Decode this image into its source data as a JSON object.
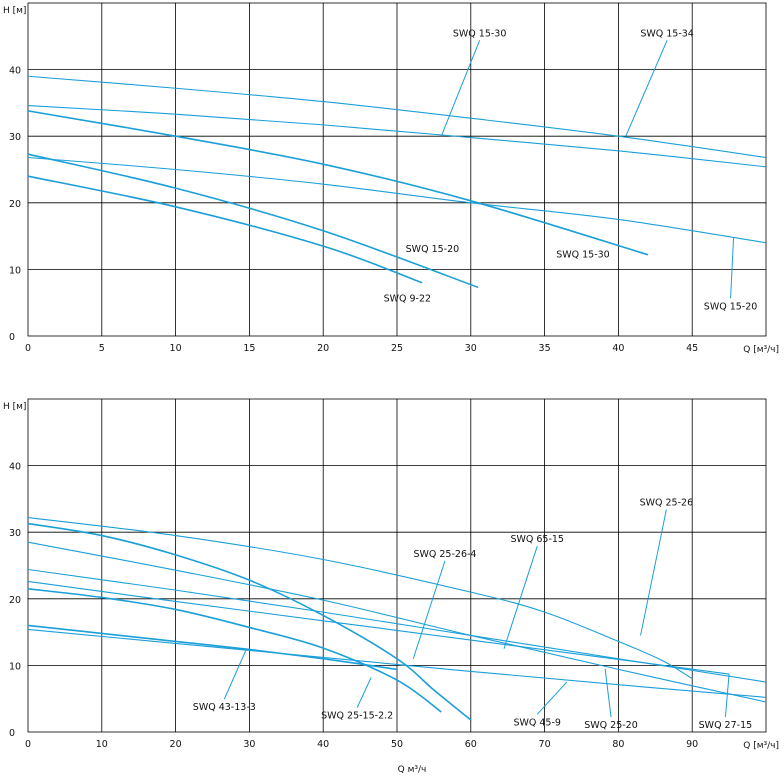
{
  "chart_data": [
    {
      "type": "line",
      "xlabel": "Q [м³/ч]",
      "ylabel": "H [м]",
      "xlim": [
        0,
        50
      ],
      "ylim": [
        0,
        50
      ],
      "x_ticks": [
        0,
        5,
        10,
        15,
        20,
        25,
        30,
        35,
        40,
        45
      ],
      "y_ticks": [
        0,
        10,
        20,
        30,
        40
      ],
      "grid": true,
      "series": [
        {
          "name": "SWQ 15-34",
          "width": 1.1,
          "points": [
            [
              0,
              39
            ],
            [
              10,
              37.2
            ],
            [
              20,
              35.2
            ],
            [
              30,
              32.7
            ],
            [
              40,
              30
            ],
            [
              50,
              26.8
            ]
          ]
        },
        {
          "name": "SWQ 15-30",
          "width": 1.1,
          "points": [
            [
              0,
              34.6
            ],
            [
              10,
              33.3
            ],
            [
              20,
              31.7
            ],
            [
              30,
              29.8
            ],
            [
              40,
              27.8
            ],
            [
              50,
              25.4
            ]
          ]
        },
        {
          "name": "SWQ 15-30",
          "width": 1.6,
          "points": [
            [
              0,
              33.8
            ],
            [
              10,
              30
            ],
            [
              20,
              25.8
            ],
            [
              30,
              20.3
            ],
            [
              42,
              12.2
            ]
          ]
        },
        {
          "name": "SWQ 15-20",
          "width": 1.1,
          "points": [
            [
              0,
              26.8
            ],
            [
              10,
              25
            ],
            [
              20,
              22.8
            ],
            [
              30,
              20
            ],
            [
              40,
              17.5
            ],
            [
              50,
              14
            ]
          ]
        },
        {
          "name": "SWQ 15-20",
          "width": 1.6,
          "points": [
            [
              0,
              27.3
            ],
            [
              10,
              22.2
            ],
            [
              20,
              15.8
            ],
            [
              30.5,
              7.3
            ]
          ]
        },
        {
          "name": "SWQ 9-22",
          "width": 1.6,
          "points": [
            [
              0,
              24
            ],
            [
              10,
              19.4
            ],
            [
              20,
              13.5
            ],
            [
              26.7,
              8
            ]
          ]
        }
      ],
      "labels": [
        {
          "text": "SWQ 15-30",
          "at": [
            30.6,
            45
          ],
          "anchor": [
            28,
            30
          ]
        },
        {
          "text": "SWQ 15-34",
          "at": [
            43.3,
            45
          ],
          "anchor": [
            40.5,
            30
          ]
        },
        {
          "text": "SWQ 15-20",
          "at": [
            27.4,
            12.6
          ],
          "anchor": null
        },
        {
          "text": "SWQ 15-30",
          "at": [
            37.6,
            11.8
          ],
          "anchor": null
        },
        {
          "text": "SWQ 9-22",
          "at": [
            25.7,
            5.2
          ],
          "anchor": null
        },
        {
          "text": "SWQ 15-20",
          "at": [
            47.6,
            4
          ],
          "anchor": [
            47.8,
            14.7
          ]
        }
      ]
    },
    {
      "type": "line",
      "xlabel": "Q [м³/ч]",
      "ylabel": "H [м]",
      "bottom_label": "Q м³/ч",
      "xlim": [
        0,
        100
      ],
      "ylim": [
        0,
        50
      ],
      "x_ticks": [
        0,
        10,
        20,
        30,
        40,
        50,
        60,
        70,
        80,
        90
      ],
      "y_ticks": [
        0,
        10,
        20,
        30,
        40
      ],
      "grid": true,
      "series": [
        {
          "name": "SWQ 25-26",
          "width": 1.1,
          "points": [
            [
              0,
              32.2
            ],
            [
              20,
              29.5
            ],
            [
              40,
              25.9
            ],
            [
              60,
              21
            ],
            [
              70,
              18
            ],
            [
              80,
              13.6
            ],
            [
              86,
              10.7
            ],
            [
              90,
              8
            ]
          ]
        },
        {
          "name": "SWQ 25-26-4",
          "width": 1.6,
          "points": [
            [
              0,
              31.3
            ],
            [
              10,
              29.5
            ],
            [
              20,
              26.6
            ],
            [
              30,
              22.8
            ],
            [
              40,
              17.5
            ],
            [
              50,
              11
            ],
            [
              55,
              6.3
            ],
            [
              60,
              1.8
            ]
          ]
        },
        {
          "name": "SWQ 25-20",
          "width": 1.1,
          "points": [
            [
              0,
              28.5
            ],
            [
              20,
              24.3
            ],
            [
              40,
              19.8
            ],
            [
              60,
              14.5
            ],
            [
              80,
              9.4
            ],
            [
              100,
              4.5
            ]
          ]
        },
        {
          "name": "SWQ 65-15",
          "width": 1.1,
          "points": [
            [
              0,
              24.4
            ],
            [
              20,
              21.3
            ],
            [
              40,
              18
            ],
            [
              60,
              14.5
            ],
            [
              80,
              11
            ],
            [
              100,
              7.5
            ]
          ]
        },
        {
          "name": "SWQ 27-15",
          "width": 1.1,
          "points": [
            [
              0,
              22.6
            ],
            [
              20,
              19.6
            ],
            [
              40,
              16.7
            ],
            [
              60,
              13.8
            ],
            [
              80,
              10.9
            ],
            [
              95,
              8.7
            ]
          ]
        },
        {
          "name": "SWQ 25-15-2.2",
          "width": 1.6,
          "points": [
            [
              0,
              21.5
            ],
            [
              10,
              20.2
            ],
            [
              20,
              18.4
            ],
            [
              30,
              15.7
            ],
            [
              40,
              12.6
            ],
            [
              50,
              7.8
            ],
            [
              56,
              3
            ]
          ]
        },
        {
          "name": "SWQ 43-13-3",
          "width": 1.6,
          "points": [
            [
              0,
              16
            ],
            [
              10,
              14.8
            ],
            [
              20,
              13.6
            ],
            [
              30,
              12.4
            ],
            [
              40,
              11
            ],
            [
              50,
              9.4
            ]
          ]
        },
        {
          "name": "SWQ 45-9",
          "width": 1.1,
          "points": [
            [
              0,
              15.4
            ],
            [
              20,
              13.3
            ],
            [
              40,
              11.2
            ],
            [
              60,
              9.1
            ],
            [
              80,
              7.1
            ],
            [
              100,
              5.2
            ]
          ]
        }
      ],
      "labels": [
        {
          "text": "SWQ 25-26",
          "at": [
            86.5,
            34
          ],
          "anchor": [
            83,
            14.5
          ]
        },
        {
          "text": "SWQ 65-15",
          "at": [
            69,
            28.5
          ],
          "anchor": [
            64.5,
            12.5
          ]
        },
        {
          "text": "SWQ 25-26-4",
          "at": [
            56.5,
            26.3
          ],
          "anchor": [
            52.2,
            11
          ]
        },
        {
          "text": "SWQ 43-13-3",
          "at": [
            26.6,
            3.3
          ],
          "anchor": [
            29.5,
            12.2
          ]
        },
        {
          "text": "SWQ 25-15-2.2",
          "at": [
            44.6,
            2
          ],
          "anchor": [
            46.5,
            8.2
          ]
        },
        {
          "text": "SWQ 45-9",
          "at": [
            69,
            1
          ],
          "anchor": [
            73,
            7.5
          ]
        },
        {
          "text": "SWQ 25-20",
          "at": [
            79,
            0.6
          ],
          "anchor": [
            78.2,
            9.5
          ]
        },
        {
          "text": "SWQ 27-15",
          "at": [
            94.5,
            0.6
          ],
          "anchor": [
            95,
            8.7
          ]
        }
      ]
    }
  ],
  "colors": {
    "curve": "#1a9fd9",
    "grid": "#000000",
    "text": "#111111"
  }
}
